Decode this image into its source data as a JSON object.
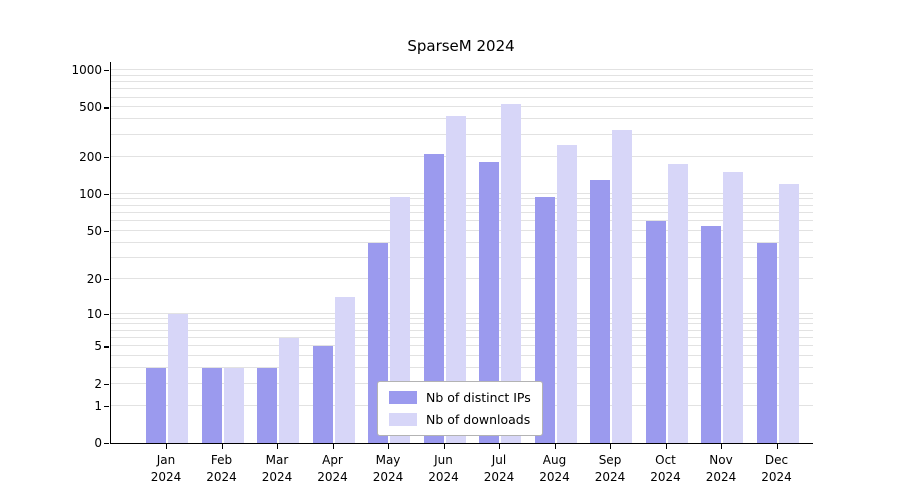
{
  "chart_data": {
    "type": "bar",
    "title": "SparseM 2024",
    "scale": "symlog",
    "grid": "horizontal-log-minor",
    "legend_position": "bottom-center",
    "year": "2024",
    "categories": [
      "Jan",
      "Feb",
      "Mar",
      "Apr",
      "May",
      "Jun",
      "Jul",
      "Aug",
      "Sep",
      "Oct",
      "Nov",
      "Dec"
    ],
    "yticks": [
      0,
      1,
      2,
      5,
      10,
      20,
      50,
      100,
      200,
      500,
      1000
    ],
    "ylim": [
      0,
      1000
    ],
    "colors": {
      "distinct_ips": "#9b9aee",
      "downloads": "#d7d6f8",
      "gridline": "#e2e2e2",
      "axis": "#000000"
    },
    "series": [
      {
        "name": "Nb of distinct IPs",
        "color": "#9b9aee",
        "values": [
          3,
          3,
          3,
          5,
          40,
          210,
          180,
          95,
          130,
          60,
          55,
          40
        ]
      },
      {
        "name": "Nb of downloads",
        "color": "#d7d6f8",
        "values": [
          10,
          3,
          6,
          14,
          95,
          430,
          530,
          250,
          330,
          175,
          150,
          120
        ]
      }
    ]
  }
}
